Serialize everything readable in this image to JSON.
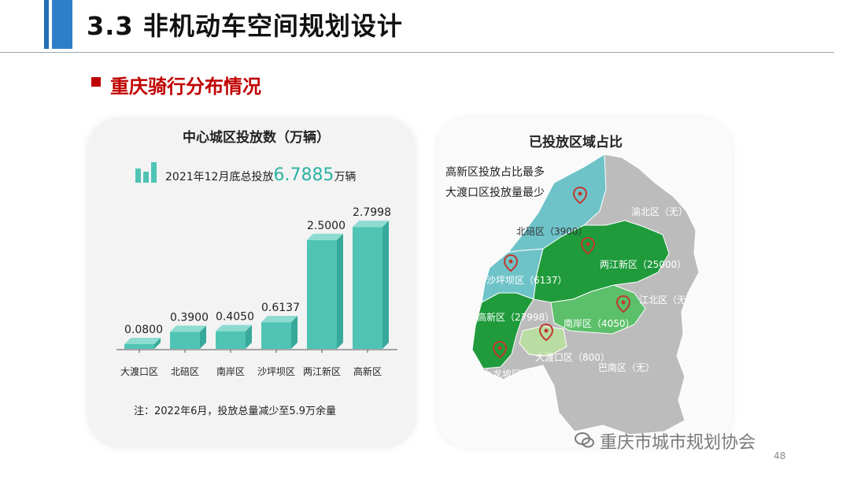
{
  "header": {
    "title": "3.3 非机动车空间规划设计"
  },
  "subtitle": "重庆骑行分布情况",
  "left_card": {
    "chart_title": "中心城区投放数（万辆）",
    "summary_prefix": "2021年12月底总投放",
    "summary_value": "6.7885",
    "summary_suffix": "万辆",
    "note": "注：2022年6月，投放总量减少至5.9万余量"
  },
  "chart_data": {
    "type": "bar",
    "title": "中心城区投放数（万辆）",
    "categories": [
      "大渡口区",
      "北碚区",
      "南岸区",
      "沙坪坝区",
      "两江新区",
      "高新区"
    ],
    "values": [
      0.08,
      0.39,
      0.405,
      0.6137,
      2.5,
      2.7998
    ],
    "value_labels": [
      "0.0800",
      "0.3900",
      "0.4050",
      "0.6137",
      "2.5000",
      "2.7998"
    ],
    "ylim": [
      0,
      3
    ],
    "grid": false,
    "bar_color": "#4fc4b4"
  },
  "right_card": {
    "map_title": "已投放区域占比",
    "annotations": [
      "高新区投放占比最多",
      "大渡口区投放量最少"
    ],
    "districts": [
      {
        "label": "渝北区（无）"
      },
      {
        "label": "北碚区（3900）"
      },
      {
        "label": "两江新区（25000）"
      },
      {
        "label": "沙坪坝区（6137）"
      },
      {
        "label": "江北区（无）"
      },
      {
        "label": "高新区（27998）"
      },
      {
        "label": "南岸区（4050）"
      },
      {
        "label": "大渡口区（800）"
      },
      {
        "label": "九龙坡区（无）"
      },
      {
        "label": "巴南区（无）"
      }
    ],
    "colors": {
      "dark_green": "#1f9b3c",
      "mid_green": "#5cbf6a",
      "teal": "#6ec3c8",
      "gray": "#bcbcbc",
      "light_green": "#b9dca2"
    }
  },
  "footer": {
    "watermark": "重庆市城市规划协会",
    "page": "48"
  }
}
